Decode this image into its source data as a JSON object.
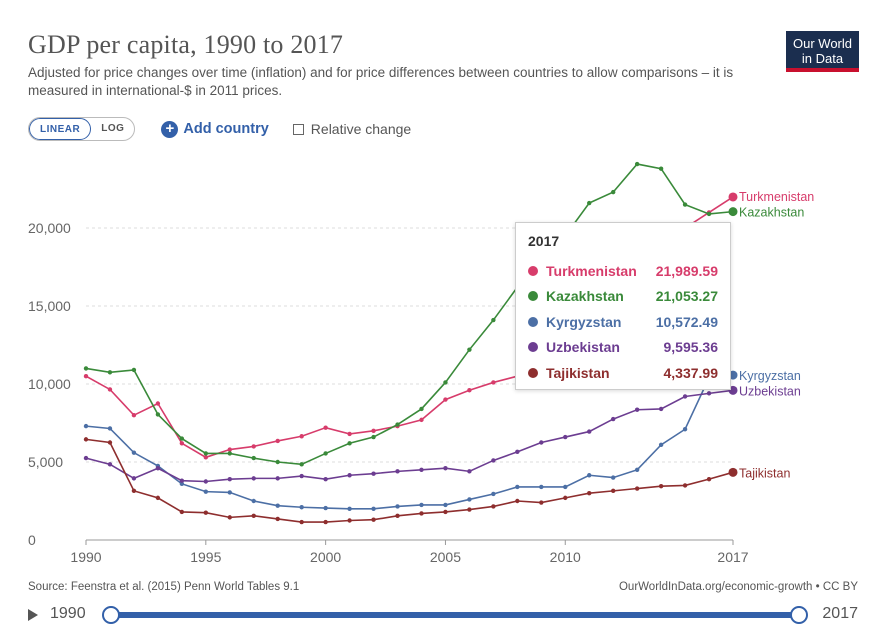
{
  "header": {
    "title": "GDP per capita, 1990 to 2017",
    "subtitle": "Adjusted for price changes over time (inflation) and for price differences between countries to allow comparisons – it is measured in international-$ in 2011 prices.",
    "logo_line1": "Our World",
    "logo_line2": "in Data"
  },
  "controls": {
    "linear_label": "LINEAR",
    "log_label": "LOG",
    "add_country_label": "Add country",
    "relative_change_label": "Relative change"
  },
  "tooltip": {
    "year": "2017",
    "rows": [
      {
        "name": "Turkmenistan",
        "value": "21,989.59"
      },
      {
        "name": "Kazakhstan",
        "value": "21,053.27"
      },
      {
        "name": "Kyrgyzstan",
        "value": "10,572.49"
      },
      {
        "name": "Uzbekistan",
        "value": "9,595.36"
      },
      {
        "name": "Tajikistan",
        "value": "4,337.99"
      }
    ]
  },
  "footer": {
    "source": "Source: Feenstra et al. (2015) Penn World Tables 9.1",
    "credit": "OurWorldInData.org/economic-growth • CC BY"
  },
  "timeline": {
    "start": "1990",
    "end": "2017"
  },
  "chart_data": {
    "type": "line",
    "title": "GDP per capita, 1990 to 2017",
    "ylim": [
      0,
      25000
    ],
    "xlim": [
      1990,
      2017
    ],
    "yticks": [
      0,
      5000,
      10000,
      15000,
      20000
    ],
    "ytick_labels": [
      "0",
      "5,000",
      "10,000",
      "15,000",
      "20,000"
    ],
    "xticks": [
      1990,
      1995,
      2000,
      2005,
      2010,
      2017
    ],
    "xtick_labels": [
      "1990",
      "1995",
      "2000",
      "2005",
      "2010",
      "2017"
    ],
    "grid": "horizontal",
    "x": [
      1990,
      1991,
      1992,
      1993,
      1994,
      1995,
      1996,
      1997,
      1998,
      1999,
      2000,
      2001,
      2002,
      2003,
      2004,
      2005,
      2006,
      2007,
      2008,
      2009,
      2010,
      2011,
      2012,
      2013,
      2014,
      2015,
      2016,
      2017
    ],
    "series": [
      {
        "name": "Turkmenistan",
        "color": "#d73c6b",
        "values": [
          10500,
          9650,
          8000,
          8750,
          6200,
          5300,
          5800,
          6000,
          6350,
          6650,
          7200,
          6800,
          7000,
          7300,
          7700,
          9000,
          9600,
          10100,
          10500,
          11000,
          12000,
          14000,
          16000,
          18000,
          19500,
          20000,
          21000,
          21990
        ]
      },
      {
        "name": "Kazakhstan",
        "color": "#3a8a3a",
        "values": [
          11000,
          10750,
          10900,
          8050,
          6500,
          5550,
          5550,
          5250,
          5000,
          4850,
          5550,
          6200,
          6600,
          7400,
          8400,
          10100,
          12200,
          14100,
          16200,
          18200,
          19500,
          21600,
          22300,
          24100,
          23800,
          21500,
          20900,
          21050
        ]
      },
      {
        "name": "Kyrgyzstan",
        "color": "#4c6fa5",
        "values": [
          7300,
          7150,
          5600,
          4750,
          3600,
          3100,
          3050,
          2500,
          2200,
          2100,
          2050,
          2000,
          2000,
          2150,
          2250,
          2250,
          2600,
          2950,
          3400,
          3400,
          3400,
          4150,
          4000,
          4500,
          6100,
          7100,
          10400,
          10572
        ]
      },
      {
        "name": "Uzbekistan",
        "color": "#6c3d91",
        "values": [
          5250,
          4850,
          3950,
          4600,
          3800,
          3750,
          3900,
          3950,
          3950,
          4100,
          3900,
          4150,
          4250,
          4400,
          4500,
          4600,
          4400,
          5100,
          5650,
          6250,
          6600,
          6950,
          7750,
          8350,
          8400,
          9200,
          9400,
          9595
        ]
      },
      {
        "name": "Tajikistan",
        "color": "#8e2e2e",
        "values": [
          6450,
          6250,
          3150,
          2700,
          1800,
          1750,
          1450,
          1550,
          1350,
          1150,
          1150,
          1250,
          1300,
          1550,
          1700,
          1800,
          1950,
          2150,
          2500,
          2400,
          2700,
          3000,
          3150,
          3300,
          3450,
          3500,
          3900,
          4338
        ]
      }
    ]
  }
}
